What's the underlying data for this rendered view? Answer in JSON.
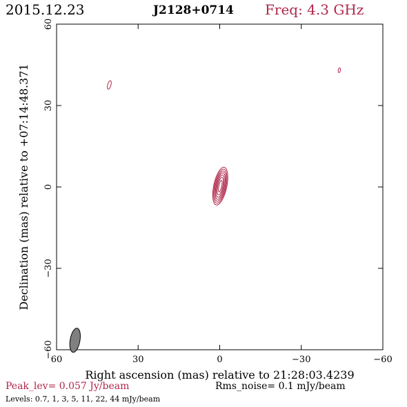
{
  "header": {
    "date": "2015.12.23",
    "source": "J2128+0714",
    "frequency": "Freq: 4.3 GHz"
  },
  "footer": {
    "peak": "Peak_lev=  0.057 Jy/beam",
    "rms": "Rms_noise=  0.1 mJy/beam",
    "levels": "Levels: 0.7,   1,   3,   5,   11,   22,   44  mJy/beam"
  },
  "colors": {
    "contour": "#b0264a",
    "beam": "#808080",
    "axis": "#000000"
  },
  "chart_data": {
    "type": "contour",
    "xlabel": "Right ascension (mas) relative to 21:28:03.4239",
    "ylabel": "Declination (mas) relative to +07:14:48.371",
    "xlim": [
      60,
      -60
    ],
    "ylim": [
      -60,
      60
    ],
    "x_ticks": [
      60,
      30,
      0,
      -30,
      -60
    ],
    "y_ticks": [
      -60,
      -30,
      0,
      30,
      60
    ],
    "x_tick_labels": [
      "60",
      "30",
      "0",
      "−30",
      "−60"
    ],
    "y_tick_labels": [
      "−60",
      "−30",
      "0",
      "30",
      "60"
    ],
    "contour_levels_mJy": [
      0.7,
      1,
      3,
      5,
      11,
      22,
      44
    ],
    "peak_Jy_per_beam": 0.057,
    "rms_mJy_per_beam": 0.1,
    "components": [
      {
        "name": "core",
        "x": -0.2,
        "y": 0.3,
        "pa_deg": 12,
        "contours": [
          {
            "a": 2.4,
            "b": 7.1
          },
          {
            "a": 2.1,
            "b": 6.4
          },
          {
            "a": 1.8,
            "b": 5.7
          },
          {
            "a": 1.5,
            "b": 5.0
          },
          {
            "a": 1.2,
            "b": 4.2
          },
          {
            "a": 0.9,
            "b": 3.3
          },
          {
            "a": 0.5,
            "b": 2.2
          }
        ]
      },
      {
        "name": "blob-upper-left",
        "x": 40.6,
        "y": 37.6,
        "pa_deg": 15,
        "contours": [
          {
            "a": 0.6,
            "b": 1.6
          }
        ]
      },
      {
        "name": "blob-upper-right",
        "x": -44.0,
        "y": 43.0,
        "pa_deg": 10,
        "contours": [
          {
            "a": 0.4,
            "b": 0.9
          }
        ]
      }
    ],
    "beam": {
      "x": 53.2,
      "y": -56.5,
      "major": 4.5,
      "minor": 1.8,
      "pa_deg": 10
    }
  }
}
